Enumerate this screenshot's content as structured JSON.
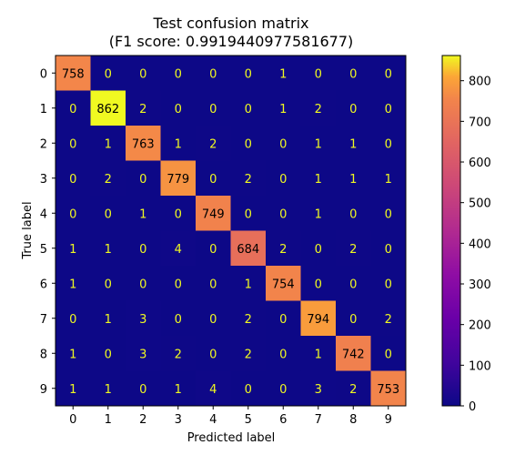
{
  "chart_data": {
    "type": "heatmap",
    "title": "Test confusion matrix",
    "subtitle": "(F1 score: 0.9919440977581677)",
    "xlabel": "Predicted label",
    "ylabel": "True label",
    "x_categories": [
      "0",
      "1",
      "2",
      "3",
      "4",
      "5",
      "6",
      "7",
      "8",
      "9"
    ],
    "y_categories": [
      "0",
      "1",
      "2",
      "3",
      "4",
      "5",
      "6",
      "7",
      "8",
      "9"
    ],
    "matrix": [
      [
        758,
        0,
        0,
        0,
        0,
        0,
        1,
        0,
        0,
        0
      ],
      [
        0,
        862,
        2,
        0,
        0,
        0,
        1,
        2,
        0,
        0
      ],
      [
        0,
        1,
        763,
        1,
        2,
        0,
        0,
        1,
        1,
        0
      ],
      [
        0,
        2,
        0,
        779,
        0,
        2,
        0,
        1,
        1,
        1
      ],
      [
        0,
        0,
        1,
        0,
        749,
        0,
        0,
        1,
        0,
        0
      ],
      [
        1,
        1,
        0,
        4,
        0,
        684,
        2,
        0,
        2,
        0
      ],
      [
        1,
        0,
        0,
        0,
        0,
        1,
        754,
        0,
        0,
        0
      ],
      [
        0,
        1,
        3,
        0,
        0,
        2,
        0,
        794,
        0,
        2
      ],
      [
        1,
        0,
        3,
        2,
        0,
        2,
        0,
        1,
        742,
        0
      ],
      [
        1,
        1,
        0,
        1,
        4,
        0,
        0,
        3,
        2,
        753
      ]
    ],
    "colormap": "plasma",
    "color_range": [
      0,
      862
    ],
    "colorbar_ticks": [
      0,
      100,
      200,
      300,
      400,
      500,
      600,
      700,
      800
    ],
    "grid": false
  }
}
